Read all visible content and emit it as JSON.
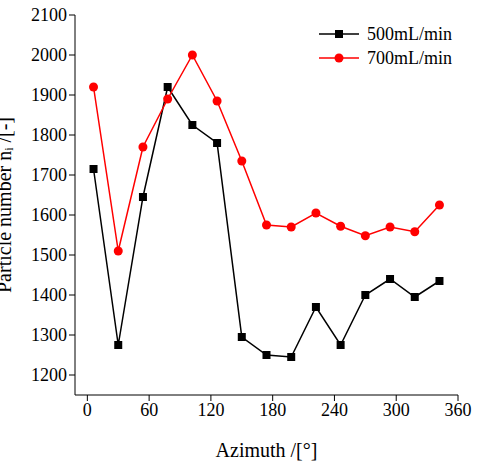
{
  "chart_data": {
    "type": "line",
    "xlabel": "Azimuth /[°]",
    "ylabel": "Particle number nᵢ /[-]",
    "x": [
      6,
      30,
      54,
      78,
      102,
      126,
      150,
      174,
      198,
      222,
      246,
      270,
      294,
      318,
      342
    ],
    "series": [
      {
        "name": "500mL/min",
        "color": "#000000",
        "marker": "square",
        "values": [
          1715,
          1275,
          1645,
          1920,
          1825,
          1780,
          1295,
          1250,
          1245,
          1370,
          1275,
          1400,
          1440,
          1395,
          1435
        ]
      },
      {
        "name": "700mL/min",
        "color": "#ff0000",
        "marker": "circle",
        "values": [
          1920,
          1510,
          1770,
          1890,
          2000,
          1885,
          1735,
          1575,
          1570,
          1605,
          1572,
          1548,
          1570,
          1558,
          1625
        ]
      }
    ],
    "xlim": [
      -12,
      360
    ],
    "xticks": [
      0,
      60,
      120,
      180,
      240,
      300,
      360
    ],
    "ylim": [
      1150,
      2100
    ],
    "yticks": [
      1200,
      1300,
      1400,
      1500,
      1600,
      1700,
      1800,
      1900,
      2000,
      2100
    ],
    "legend": "upper right"
  }
}
